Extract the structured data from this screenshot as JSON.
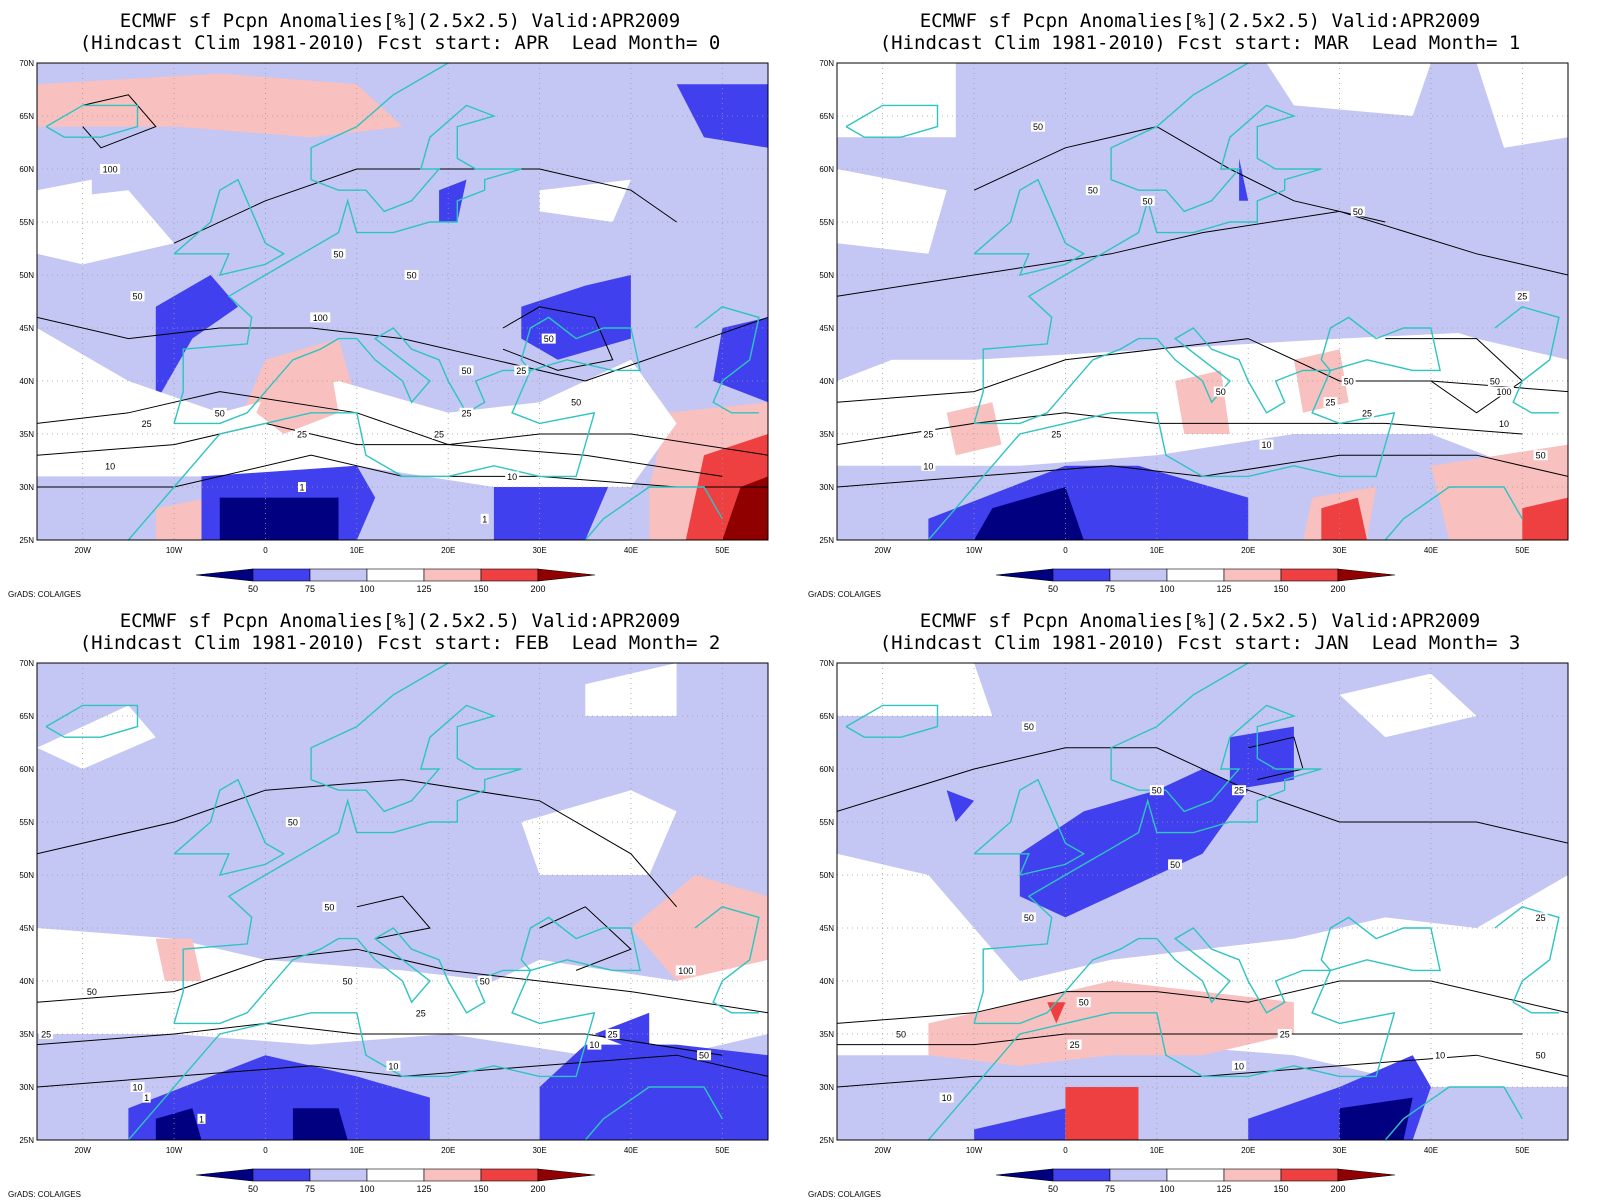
{
  "panels": [
    {
      "title_line1": "ECMWF sf Pcpn Anomalies[%](2.5x2.5) Valid:APR2009",
      "title_line2": "(Hindcast Clim 1981-2010) Fcst start: APR  Lead Month= 0",
      "variant": 0
    },
    {
      "title_line1": "ECMWF sf Pcpn Anomalies[%](2.5x2.5) Valid:APR2009",
      "title_line2": "(Hindcast Clim 1981-2010) Fcst start: MAR  Lead Month= 1",
      "variant": 1
    },
    {
      "title_line1": "ECMWF sf Pcpn Anomalies[%](2.5x2.5) Valid:APR2009",
      "title_line2": "(Hindcast Clim 1981-2010) Fcst start: FEB  Lead Month= 2",
      "variant": 2
    },
    {
      "title_line1": "ECMWF sf Pcpn Anomalies[%](2.5x2.5) Valid:APR2009",
      "title_line2": "(Hindcast Clim 1981-2010) Fcst start: JAN  Lead Month= 3",
      "variant": 3
    }
  ],
  "lat_labels": [
    "70N",
    "65N",
    "60N",
    "55N",
    "50N",
    "45N",
    "40N",
    "35N",
    "30N",
    "25N"
  ],
  "lon_labels": [
    "20W",
    "10W",
    "0",
    "10E",
    "20E",
    "30E",
    "40E",
    "50E"
  ],
  "colorbar": {
    "labels": [
      "50",
      "75",
      "100",
      "125",
      "150",
      "200"
    ],
    "colors": [
      "#000080",
      "#4040ee",
      "#c4c6f4",
      "#ffffff",
      "#f9c0c0",
      "#ee4040",
      "#900000"
    ]
  },
  "credit": "GrADS: COLA/IGES",
  "contour_labels": {
    "p0": [
      "100",
      "50",
      "50",
      "50",
      "100",
      "50",
      "50",
      "25",
      "25",
      "10",
      "1",
      "50",
      "25",
      "10",
      "50",
      "25",
      "25",
      "1"
    ],
    "p1": [
      "50",
      "50",
      "50",
      "50",
      "50",
      "25",
      "25",
      "10",
      "50",
      "10",
      "25",
      "50",
      "25",
      "100",
      "10",
      "50",
      "25"
    ],
    "p2": [
      "50",
      "50",
      "50",
      "50",
      "25",
      "10",
      "1",
      "1",
      "50",
      "100",
      "25",
      "10",
      "50",
      "25",
      "10"
    ],
    "p3": [
      "50",
      "50",
      "25",
      "50",
      "50",
      "50",
      "25",
      "10",
      "50",
      "25",
      "10",
      "50",
      "25",
      "10"
    ]
  },
  "colors": {
    "coast": "#2ec4c0",
    "grid": "#9a9a9a",
    "light_blue": "#c4c6f4",
    "mid_blue": "#4040ee",
    "dark_blue": "#000080",
    "light_red": "#f9c0c0",
    "mid_red": "#ee4040",
    "dark_red": "#900000"
  }
}
